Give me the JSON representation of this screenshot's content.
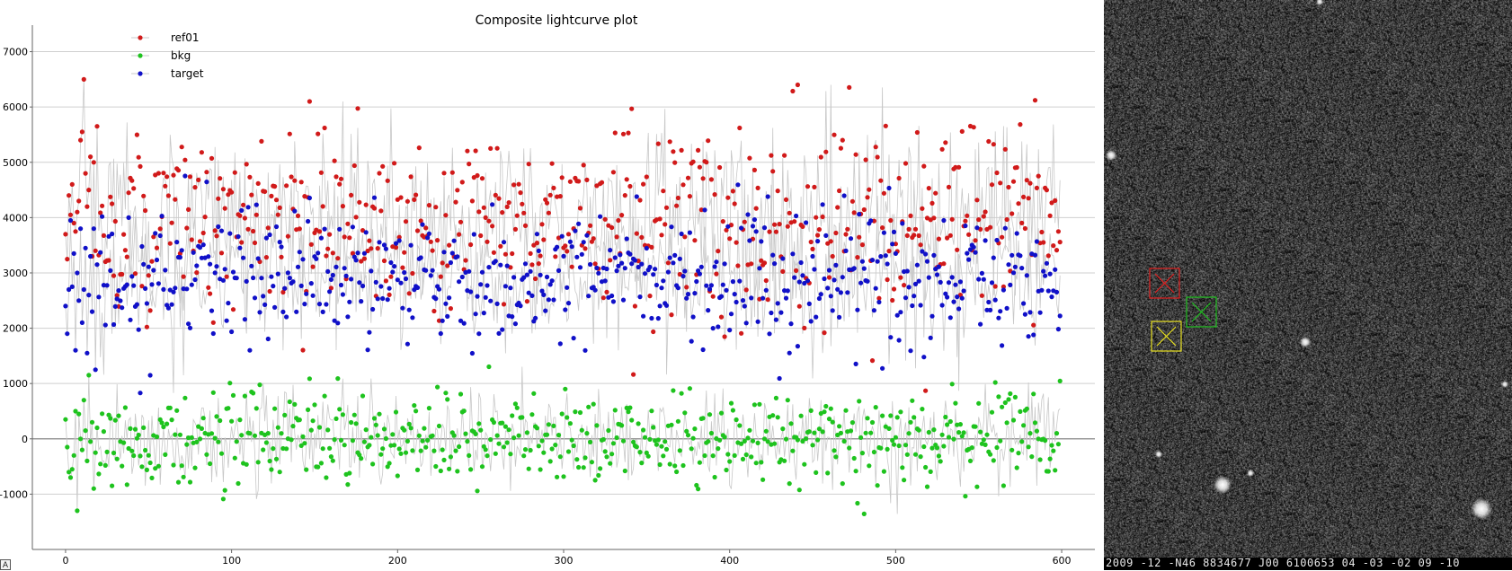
{
  "chart_data": {
    "type": "scatter",
    "title": "Composite lightcurve plot",
    "xlim": [
      -20,
      620
    ],
    "ylim": [
      -2000,
      7350
    ],
    "xticks": [
      0,
      100,
      200,
      300,
      400,
      500,
      600
    ],
    "yticks": [
      -1000,
      0,
      1000,
      2000,
      3000,
      4000,
      5000,
      6000,
      7000
    ],
    "legend_position": "top-left",
    "grid": "horizontal",
    "connect_points": true,
    "n_points": 600,
    "series": [
      {
        "name": "ref01",
        "color": "#d11a1a",
        "mean": 3950,
        "spread": 830,
        "sample_values": [
          3700,
          3250,
          4400,
          4050,
          4600,
          3900,
          3750,
          4100,
          4300,
          5400,
          5550,
          6500,
          4800,
          4200,
          4500,
          5100,
          3300,
          5000,
          3400,
          5650
        ]
      },
      {
        "name": "bkg",
        "color": "#1ec31e",
        "mean": 0,
        "spread": 420,
        "sample_values": [
          350,
          -150,
          -600,
          -700,
          -550,
          -300,
          500,
          -1300,
          450,
          0,
          -200,
          700,
          150,
          -400,
          1150,
          -50,
          300,
          -900,
          -250,
          200
        ]
      },
      {
        "name": "target",
        "color": "#1010c8",
        "mean": 2900,
        "spread": 600,
        "sample_values": [
          2400,
          1900,
          2700,
          3950,
          2750,
          3350,
          1600,
          3000,
          2500,
          3800,
          2100,
          2700,
          3450,
          1550,
          2600,
          3300,
          2300,
          3800,
          1250,
          3150
        ]
      }
    ]
  },
  "image_panel": {
    "status_text": "2009 -12 -N46 8834677 J00 6100653 04 -03 -02 09 -10",
    "boxes": [
      {
        "name": "ref01",
        "color": "#e02020"
      },
      {
        "name": "bkg",
        "color": "#20c020"
      },
      {
        "name": "target",
        "color": "#e8e020"
      }
    ]
  },
  "corner_icon_label": "A"
}
